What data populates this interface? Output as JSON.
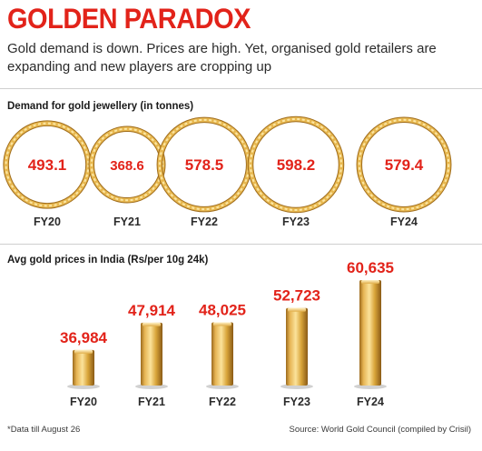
{
  "header": {
    "title": "GOLDEN PARADOX",
    "subtitle": "Gold demand is down. Prices are high. Yet, organised gold retailers are expanding and new players are cropping up"
  },
  "colors": {
    "accent": "#e2231a",
    "gold": "#d9a53a",
    "gold_dark": "#a06d1c",
    "gold_light": "#f7d98a"
  },
  "chart_data": [
    {
      "type": "bubble",
      "title": "Demand for gold jewellery (in tonnes)",
      "categories": [
        "FY20",
        "FY21",
        "FY22",
        "FY23",
        "FY24"
      ],
      "values": [
        493.1,
        368.6,
        578.5,
        598.2,
        579.4
      ],
      "value_labels": [
        "493.1",
        "368.6",
        "578.5",
        "598.2",
        "579.4"
      ],
      "xlabel": "",
      "ylabel": ""
    },
    {
      "type": "bar",
      "title": "Avg gold prices in India (Rs/per 10g 24k)",
      "categories": [
        "FY20",
        "FY21",
        "FY22",
        "FY23",
        "FY24"
      ],
      "values": [
        36984,
        47914,
        48025,
        52723,
        60635
      ],
      "value_labels": [
        "36,984",
        "47,914",
        "48,025",
        "52,723",
        "60,635"
      ],
      "xlabel": "",
      "ylabel": ""
    }
  ],
  "footer": {
    "note": "*Data till August 26",
    "source": "Source: World Gold Council (compiled by Crisil)"
  }
}
